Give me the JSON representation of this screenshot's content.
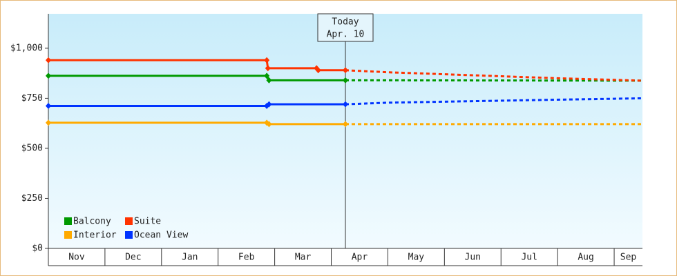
{
  "chart_data": {
    "type": "line",
    "categories": [
      "Nov",
      "Dec",
      "Jan",
      "Feb",
      "Mar",
      "Apr",
      "May",
      "Jun",
      "Jul",
      "Aug",
      "Sep"
    ],
    "xlim": [
      0,
      10.5
    ],
    "ylim": [
      0,
      1172
    ],
    "yticks": [
      {
        "value": 0,
        "label": "$0"
      },
      {
        "value": 250,
        "label": "$250"
      },
      {
        "value": 500,
        "label": "$500"
      },
      {
        "value": 750,
        "label": "$750"
      },
      {
        "value": 1000,
        "label": "$1,000"
      }
    ],
    "today": {
      "x": 5.25,
      "label": [
        "Today",
        "Apr. 10"
      ]
    },
    "series": [
      {
        "name": "Balcony",
        "color": "#009900",
        "x": [
          0,
          3.86,
          3.9,
          5.25
        ],
        "values": [
          862,
          862,
          840,
          840
        ],
        "forecast_x": [
          5.25,
          10.5
        ],
        "forecast_values": [
          840,
          838
        ]
      },
      {
        "name": "Suite",
        "color": "#ff3300",
        "x": [
          0,
          3.86,
          3.88,
          4.74,
          4.77,
          5.25
        ],
        "values": [
          940,
          940,
          900,
          900,
          890,
          890
        ],
        "forecast_x": [
          5.25,
          6.0,
          7.0,
          8.0,
          9.0,
          10.5
        ],
        "forecast_values": [
          890,
          880,
          870,
          860,
          850,
          838
        ]
      },
      {
        "name": "Interior",
        "color": "#ffaa00",
        "x": [
          0,
          3.86,
          3.9,
          5.25
        ],
        "values": [
          628,
          628,
          621,
          621
        ],
        "forecast_x": [
          5.25,
          10.5
        ],
        "forecast_values": [
          621,
          621
        ]
      },
      {
        "name": "Ocean View",
        "color": "#0033ff",
        "x": [
          0,
          3.86,
          3.9,
          5.25
        ],
        "values": [
          712,
          712,
          720,
          720
        ],
        "forecast_x": [
          5.25,
          6.0,
          7.0,
          8.0,
          9.0,
          10.5
        ],
        "forecast_values": [
          720,
          728,
          733,
          738,
          743,
          750
        ]
      }
    ]
  }
}
